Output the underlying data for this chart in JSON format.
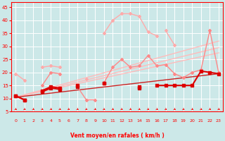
{
  "xlabel": "Vent moyen/en rafales ( km/h )",
  "bg_color": "#cce8e8",
  "grid_color": "#ffffff",
  "x_ticks": [
    0,
    1,
    2,
    3,
    4,
    5,
    6,
    7,
    8,
    9,
    10,
    11,
    12,
    13,
    14,
    15,
    16,
    17,
    18,
    19,
    20,
    21,
    22,
    23
  ],
  "ylim": [
    5,
    47
  ],
  "xlim": [
    -0.5,
    23.5
  ],
  "yticks": [
    5,
    10,
    15,
    20,
    25,
    30,
    35,
    40,
    45
  ],
  "trend_lines": [
    {
      "color": "#ffbbbb",
      "linewidth": 1.0,
      "x0": 0,
      "y0": 10.5,
      "x1": 23,
      "y1": 32.0
    },
    {
      "color": "#ffbbbb",
      "linewidth": 1.0,
      "x0": 0,
      "y0": 10.5,
      "x1": 23,
      "y1": 29.5
    },
    {
      "color": "#ffbbbb",
      "linewidth": 1.0,
      "x0": 0,
      "y0": 10.5,
      "x1": 23,
      "y1": 27.5
    },
    {
      "color": "#cc2222",
      "linewidth": 1.0,
      "x0": 0,
      "y0": 10.5,
      "x1": 23,
      "y1": 19.5
    }
  ],
  "series": [
    {
      "color": "#ffaaaa",
      "linewidth": 1.0,
      "marker": "D",
      "markersize": 2.0,
      "data": [
        19.5,
        17.0,
        null,
        22.0,
        22.5,
        22.0,
        null,
        null,
        17.5,
        null,
        null,
        null,
        null,
        null,
        null,
        null,
        null,
        null,
        null,
        null,
        null,
        null,
        null,
        null
      ]
    },
    {
      "color": "#ffaaaa",
      "linewidth": 1.0,
      "marker": "D",
      "markersize": 2.0,
      "data": [
        null,
        null,
        null,
        null,
        null,
        null,
        null,
        null,
        null,
        null,
        35.0,
        40.0,
        42.5,
        42.5,
        41.5,
        35.5,
        34.0,
        null,
        null,
        null,
        null,
        null,
        null,
        null
      ]
    },
    {
      "color": "#ffaaaa",
      "linewidth": 1.0,
      "marker": "D",
      "markersize": 2.0,
      "data": [
        null,
        null,
        null,
        null,
        null,
        null,
        null,
        null,
        null,
        null,
        null,
        null,
        null,
        null,
        null,
        null,
        null,
        36.0,
        30.5,
        null,
        null,
        null,
        null,
        null
      ]
    },
    {
      "color": "#ff8888",
      "linewidth": 1.0,
      "marker": "D",
      "markersize": 2.0,
      "data": [
        11.0,
        9.5,
        null,
        15.0,
        20.0,
        19.5,
        null,
        14.5,
        9.5,
        9.5,
        null,
        null,
        null,
        null,
        null,
        null,
        null,
        null,
        null,
        null,
        null,
        null,
        null,
        null
      ]
    },
    {
      "color": "#ff8888",
      "linewidth": 1.0,
      "marker": "D",
      "markersize": 2.0,
      "data": [
        null,
        null,
        null,
        null,
        null,
        null,
        null,
        null,
        null,
        null,
        16.0,
        22.0,
        25.0,
        22.0,
        22.5,
        26.5,
        22.5,
        23.0,
        19.5,
        18.0,
        20.0,
        21.0,
        36.0,
        20.0
      ]
    },
    {
      "color": "#cc0000",
      "linewidth": 1.2,
      "marker": "s",
      "markersize": 2.5,
      "data": [
        11.0,
        9.5,
        null,
        12.5,
        14.0,
        13.5,
        null,
        14.5,
        null,
        null,
        null,
        null,
        null,
        null,
        null,
        null,
        null,
        null,
        null,
        null,
        null,
        null,
        null,
        null
      ]
    },
    {
      "color": "#cc0000",
      "linewidth": 1.2,
      "marker": "s",
      "markersize": 2.5,
      "data": [
        null,
        null,
        null,
        null,
        null,
        null,
        null,
        null,
        null,
        null,
        16.0,
        null,
        null,
        null,
        14.0,
        null,
        null,
        null,
        null,
        null,
        null,
        null,
        null,
        null
      ]
    },
    {
      "color": "#dd0000",
      "linewidth": 1.5,
      "marker": "s",
      "markersize": 2.5,
      "data": [
        11.0,
        9.5,
        null,
        13.0,
        14.5,
        14.0,
        null,
        15.0,
        null,
        null,
        16.0,
        null,
        null,
        null,
        14.5,
        null,
        15.0,
        15.0,
        15.0,
        15.0,
        15.0,
        20.5,
        20.0,
        19.5
      ]
    }
  ]
}
